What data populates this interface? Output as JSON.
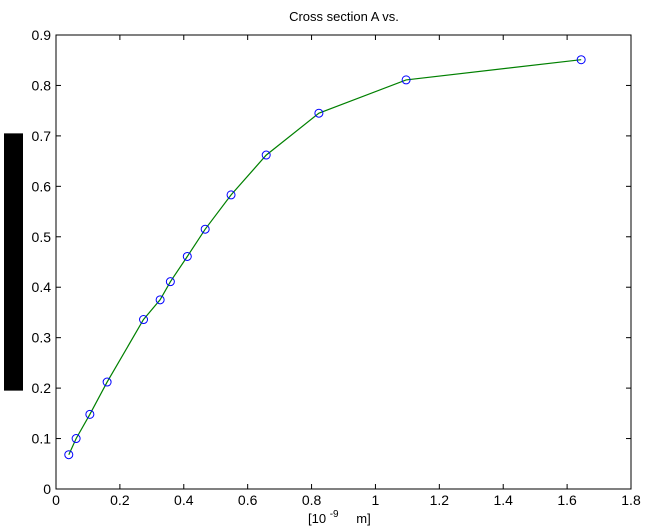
{
  "chart_data": {
    "type": "line",
    "title": "Cross section A vs.",
    "xlabel": {
      "prefix": "[10",
      "exponent": "-9",
      "suffix": "m]"
    },
    "ylabel": "",
    "xlim": [
      0,
      1.8
    ],
    "ylim": [
      0,
      0.9
    ],
    "x_ticks": [
      0,
      0.2,
      0.4,
      0.6,
      0.8,
      1,
      1.2,
      1.4,
      1.6,
      1.8
    ],
    "x_tick_labels": [
      "0",
      "0.2",
      "0.4",
      "0.6",
      "0.8",
      "1",
      "1.2",
      "1.4",
      "1.6",
      "1.8"
    ],
    "y_ticks": [
      0,
      0.1,
      0.2,
      0.3,
      0.4,
      0.5,
      0.6,
      0.7,
      0.8,
      0.9
    ],
    "y_tick_labels": [
      "0",
      "0.1",
      "0.2",
      "0.3",
      "0.4",
      "0.5",
      "0.6",
      "0.7",
      "0.8",
      "0.9"
    ],
    "grid": false,
    "series": [
      {
        "line_color": "#008000",
        "marker_color": "#0000ff",
        "marker": "circle",
        "points": [
          {
            "x": 0.04,
            "y": 0.068
          },
          {
            "x": 0.063,
            "y": 0.1
          },
          {
            "x": 0.106,
            "y": 0.148
          },
          {
            "x": 0.16,
            "y": 0.212
          },
          {
            "x": 0.274,
            "y": 0.336
          },
          {
            "x": 0.326,
            "y": 0.375
          },
          {
            "x": 0.358,
            "y": 0.411
          },
          {
            "x": 0.411,
            "y": 0.461
          },
          {
            "x": 0.467,
            "y": 0.515
          },
          {
            "x": 0.548,
            "y": 0.583
          },
          {
            "x": 0.658,
            "y": 0.662
          },
          {
            "x": 0.823,
            "y": 0.745
          },
          {
            "x": 1.096,
            "y": 0.811
          },
          {
            "x": 1.644,
            "y": 0.851
          }
        ]
      }
    ],
    "redaction": {
      "color": "#000000",
      "y_from": 0.195,
      "y_to": 0.705
    }
  }
}
